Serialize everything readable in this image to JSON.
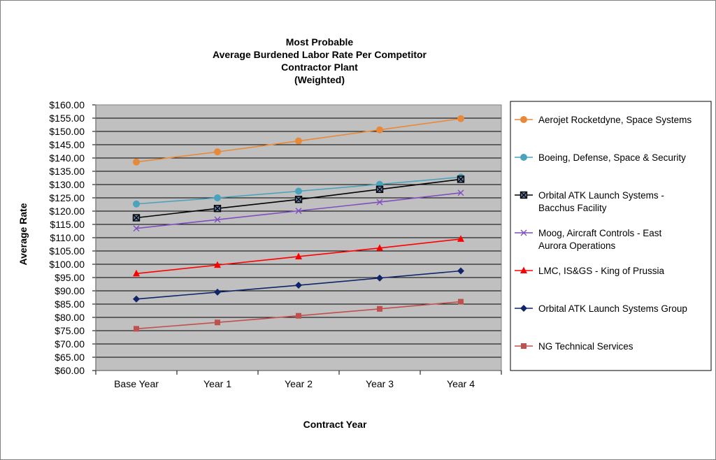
{
  "chart_data": {
    "type": "line",
    "title_lines": [
      "Most Probable",
      "Average Burdened Labor Rate Per Competitor",
      "Contractor Plant",
      "(Weighted)"
    ],
    "xlabel": "Contract Year",
    "ylabel": "Average Rate",
    "categories": [
      "Base Year",
      "Year 1",
      "Year 2",
      "Year 3",
      "Year 4"
    ],
    "ylim": [
      60,
      160
    ],
    "ystep": 5,
    "yticks": [
      "$60.00",
      "$65.00",
      "$70.00",
      "$75.00",
      "$80.00",
      "$85.00",
      "$90.00",
      "$95.00",
      "$100.00",
      "$105.00",
      "$110.00",
      "$115.00",
      "$120.00",
      "$125.00",
      "$130.00",
      "$135.00",
      "$140.00",
      "$145.00",
      "$150.00",
      "$155.00",
      "$160.00"
    ],
    "grid": "horizontal",
    "plot_background": "#c0c0c0",
    "legend_position": "right",
    "series": [
      {
        "name_lines": [
          "Aerojet Rocketdyne, Space Systems"
        ],
        "color": "#e8893a",
        "marker": "circle",
        "values": [
          138.5,
          142.3,
          146.4,
          150.6,
          154.8
        ]
      },
      {
        "name_lines": [
          "Boeing, Defense, Space & Security"
        ],
        "color": "#4aa3bd",
        "marker": "circle",
        "values": [
          122.7,
          125.0,
          127.5,
          130.1,
          132.8
        ]
      },
      {
        "name_lines": [
          "Orbital ATK Launch Systems -",
          "Bacchus Facility"
        ],
        "color": "#000000",
        "marker": "boxed-x",
        "values": [
          117.5,
          121.0,
          124.4,
          128.2,
          132.0
        ]
      },
      {
        "name_lines": [
          "Moog, Aircraft Controls - East",
          "Aurora Operations"
        ],
        "color": "#7f4fbf",
        "marker": "x",
        "values": [
          113.5,
          116.8,
          120.1,
          123.4,
          126.9
        ]
      },
      {
        "name_lines": [
          "LMC, IS&GS - King of Prussia"
        ],
        "color": "#ff0000",
        "marker": "triangle",
        "values": [
          96.5,
          99.7,
          102.9,
          106.1,
          109.5
        ]
      },
      {
        "name_lines": [
          "Orbital ATK Launch Systems Group"
        ],
        "color": "#10246a",
        "marker": "diamond",
        "values": [
          86.9,
          89.5,
          92.1,
          94.8,
          97.5
        ]
      },
      {
        "name_lines": [
          "NG Technical Services"
        ],
        "color": "#c0504d",
        "marker": "square",
        "values": [
          75.7,
          78.1,
          80.6,
          83.2,
          85.9
        ]
      }
    ]
  }
}
